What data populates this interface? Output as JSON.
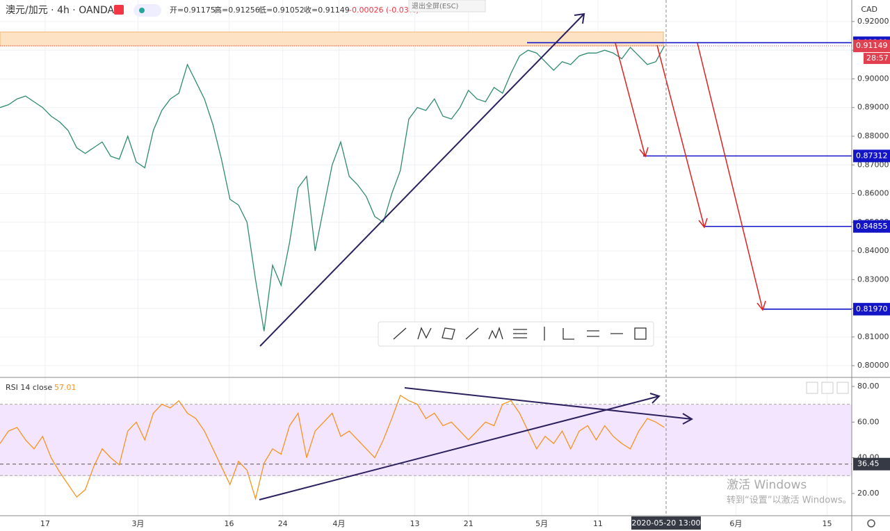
{
  "header": {
    "symbol": "澳元/加元 · 4h · OANDA",
    "open": "开=0.91175",
    "high": "高=0.91256",
    "low": "低=0.91052",
    "close": "收=0.91149",
    "change": "-0.00026 (-0.03%)",
    "fullscreen": "退出全屏(ESC)",
    "currency": "CAD",
    "countdown": "28:57"
  },
  "chart_data": [
    {
      "type": "line",
      "title": "澳元/加元",
      "color": "#2e8b6e",
      "xlim": [
        0,
        100
      ],
      "ylim": [
        0.7959,
        0.9275
      ],
      "xticks": [
        {
          "value": 5.3,
          "label": "17"
        },
        {
          "value": 16.2,
          "label": "3月"
        },
        {
          "value": 26.9,
          "label": "16"
        },
        {
          "value": 33.2,
          "label": "24"
        },
        {
          "value": 39.8,
          "label": "4月"
        },
        {
          "value": 48.7,
          "label": "13"
        },
        {
          "value": 55,
          "label": "21"
        },
        {
          "value": 63.6,
          "label": "5月"
        },
        {
          "value": 70.2,
          "label": "11"
        },
        {
          "value": 86.4,
          "label": "6月"
        },
        {
          "value": 97.1,
          "label": "15"
        }
      ],
      "crosshair": {
        "value": 78.2,
        "label": "2020-05-20  13:00"
      },
      "yticks": [
        {
          "value": 0.8,
          "label": "0.80000"
        },
        {
          "value": 0.81,
          "label": "0.81000"
        },
        {
          "value": 0.82,
          "label": "0.82000"
        },
        {
          "value": 0.83,
          "label": "0.83000"
        },
        {
          "value": 0.84,
          "label": "0.84000"
        },
        {
          "value": 0.85,
          "label": "0.85000"
        },
        {
          "value": 0.86,
          "label": "0.86000"
        },
        {
          "value": 0.87,
          "label": "0.87000"
        },
        {
          "value": 0.88,
          "label": "0.88000"
        },
        {
          "value": 0.89,
          "label": "0.89000"
        },
        {
          "value": 0.9,
          "label": "0.90000"
        },
        {
          "value": 0.91,
          "label": "0.91000"
        },
        {
          "value": 0.92,
          "label": "0.92000"
        }
      ],
      "grid": true,
      "x": [
        0,
        1,
        2,
        3,
        4,
        5,
        6,
        7,
        8,
        9,
        10,
        11,
        12,
        13,
        14,
        15,
        16,
        17,
        18,
        19,
        20,
        21,
        22,
        23,
        24,
        25,
        26,
        27,
        28,
        29,
        30,
        31,
        32,
        33,
        34,
        35,
        36,
        37,
        38,
        39,
        40,
        41,
        42,
        43,
        44,
        45,
        46,
        47,
        48,
        49,
        50,
        51,
        52,
        53,
        54,
        55,
        56,
        57,
        58,
        59,
        60,
        61,
        62,
        63,
        64,
        65,
        66,
        67,
        68,
        69,
        70,
        71,
        72,
        73,
        74,
        75,
        76,
        77,
        78
      ],
      "series": [
        {
          "name": "澳元/加元",
          "color": "#2e8b6e",
          "values": [
            0.89,
            0.891,
            0.893,
            0.894,
            0.892,
            0.89,
            0.887,
            0.885,
            0.882,
            0.876,
            0.874,
            0.876,
            0.878,
            0.873,
            0.872,
            0.88,
            0.871,
            0.869,
            0.882,
            0.889,
            0.893,
            0.895,
            0.905,
            0.899,
            0.893,
            0.884,
            0.872,
            0.858,
            0.856,
            0.85,
            0.83,
            0.812,
            0.835,
            0.828,
            0.843,
            0.862,
            0.866,
            0.84,
            0.855,
            0.87,
            0.878,
            0.866,
            0.863,
            0.859,
            0.852,
            0.85,
            0.86,
            0.868,
            0.886,
            0.89,
            0.889,
            0.893,
            0.887,
            0.886,
            0.89,
            0.896,
            0.893,
            0.892,
            0.897,
            0.895,
            0.902,
            0.908,
            0.91,
            0.909,
            0.906,
            0.903,
            0.906,
            0.905,
            0.908,
            0.909,
            0.909,
            0.91,
            0.909,
            0.907,
            0.911,
            0.908,
            0.905,
            0.906,
            0.91149
          ]
        }
      ],
      "levels": [
        {
          "value": 0.9126,
          "label": "0.91260"
        },
        {
          "value": 0.87312,
          "label": "0.87312"
        },
        {
          "value": 0.84855,
          "label": "0.84855"
        },
        {
          "value": 0.8197,
          "label": "0.81970"
        }
      ],
      "last_price": 0.91149
    },
    {
      "type": "line",
      "title": "RSI 14 close",
      "color": "#f7931e",
      "xlim": [
        0,
        100
      ],
      "ylim": [
        7.5,
        84.3
      ],
      "yticks": [
        {
          "value": 20,
          "label": "20.00"
        },
        {
          "value": 40,
          "label": "40.00"
        },
        {
          "value": 60,
          "label": "60.00"
        },
        {
          "value": 80,
          "label": "80.00"
        }
      ],
      "band": [
        30,
        70
      ],
      "crosshair_value": 36.45,
      "x": [
        0,
        1,
        2,
        3,
        4,
        5,
        6,
        7,
        8,
        9,
        10,
        11,
        12,
        13,
        14,
        15,
        16,
        17,
        18,
        19,
        20,
        21,
        22,
        23,
        24,
        25,
        26,
        27,
        28,
        29,
        30,
        31,
        32,
        33,
        34,
        35,
        36,
        37,
        38,
        39,
        40,
        41,
        42,
        43,
        44,
        45,
        46,
        47,
        48,
        49,
        50,
        51,
        52,
        53,
        54,
        55,
        56,
        57,
        58,
        59,
        60,
        61,
        62,
        63,
        64,
        65,
        66,
        67,
        68,
        69,
        70,
        71,
        72,
        73,
        74,
        75,
        76,
        77,
        78
      ],
      "series": [
        {
          "name": "RSI",
          "color": "#f7931e",
          "values": [
            48,
            55,
            57,
            50,
            45,
            52,
            40,
            32,
            25,
            18,
            22,
            35,
            45,
            40,
            36,
            55,
            60,
            50,
            65,
            70,
            68,
            72,
            65,
            62,
            55,
            45,
            35,
            25,
            38,
            33,
            17,
            37,
            45,
            42,
            58,
            65,
            40,
            55,
            60,
            65,
            52,
            55,
            50,
            45,
            40,
            50,
            62,
            75,
            72,
            70,
            62,
            65,
            58,
            60,
            55,
            50,
            55,
            60,
            58,
            70,
            72,
            65,
            55,
            45,
            52,
            48,
            55,
            45,
            55,
            58,
            50,
            58,
            52,
            48,
            45,
            55,
            62,
            60,
            57.01
          ]
        }
      ]
    }
  ],
  "watermark": {
    "title": "激活 Windows",
    "hint": "转到“设置”以激活 Windows。"
  }
}
